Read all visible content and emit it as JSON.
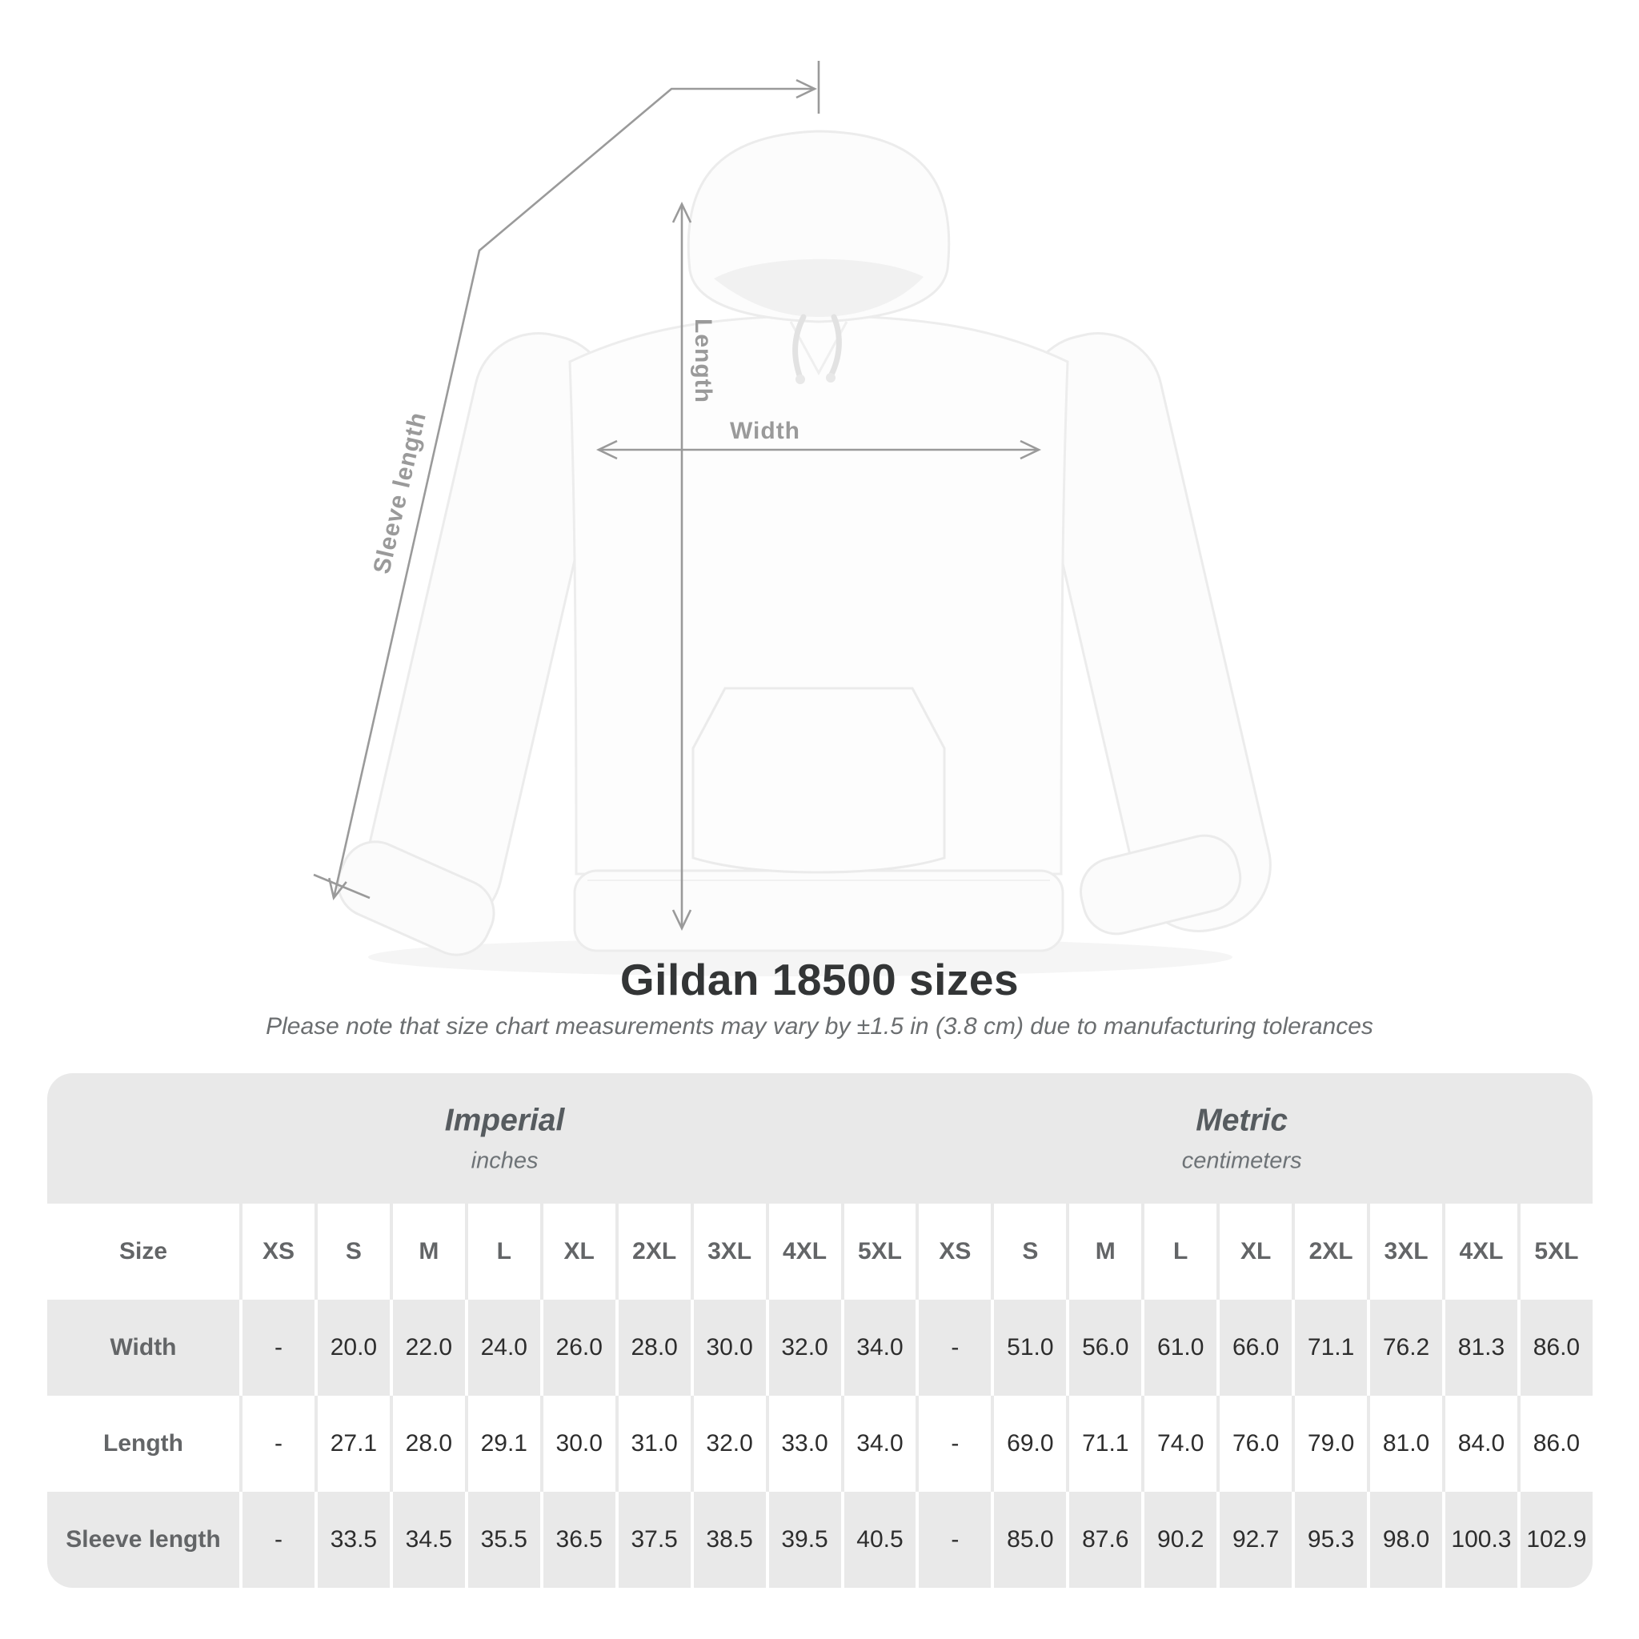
{
  "title": "Gildan 18500 sizes",
  "subtitle": "Please note that size chart measurements may vary by ±1.5 in (3.8 cm) due to manufacturing tolerances",
  "diagram": {
    "image_alt": "white-hoodie-flat-lay",
    "arrow_color": "#9a9a9a",
    "labels": {
      "width": "Width",
      "length": "Length",
      "sleeve": "Sleeve length"
    }
  },
  "table_style": {
    "band_color": "#e9e9e9",
    "row_alt_color": "#e9e9e9",
    "header_text_color": "#636567",
    "value_text_color": "#2d2d2d"
  },
  "chart_data": {
    "type": "table",
    "title": "Gildan 18500 sizes",
    "note": "Please note that size chart measurements may vary by ±1.5 in (3.8 cm) due to manufacturing tolerances",
    "groups": [
      {
        "label": "Imperial",
        "sublabel": "inches"
      },
      {
        "label": "Metric",
        "sublabel": "centimeters"
      }
    ],
    "size_header": "Size",
    "sizes": [
      "XS",
      "S",
      "M",
      "L",
      "XL",
      "2XL",
      "3XL",
      "4XL",
      "5XL"
    ],
    "rows": [
      {
        "label": "Width",
        "imperial": [
          "-",
          "20.0",
          "22.0",
          "24.0",
          "26.0",
          "28.0",
          "30.0",
          "32.0",
          "34.0"
        ],
        "metric": [
          "-",
          "51.0",
          "56.0",
          "61.0",
          "66.0",
          "71.1",
          "76.2",
          "81.3",
          "86.0"
        ]
      },
      {
        "label": "Length",
        "imperial": [
          "-",
          "27.1",
          "28.0",
          "29.1",
          "30.0",
          "31.0",
          "32.0",
          "33.0",
          "34.0"
        ],
        "metric": [
          "-",
          "69.0",
          "71.1",
          "74.0",
          "76.0",
          "79.0",
          "81.0",
          "84.0",
          "86.0"
        ]
      },
      {
        "label": "Sleeve length",
        "imperial": [
          "-",
          "33.5",
          "34.5",
          "35.5",
          "36.5",
          "37.5",
          "38.5",
          "39.5",
          "40.5"
        ],
        "metric": [
          "-",
          "85.0",
          "87.6",
          "90.2",
          "92.7",
          "95.3",
          "98.0",
          "100.3",
          "102.9"
        ]
      }
    ]
  }
}
